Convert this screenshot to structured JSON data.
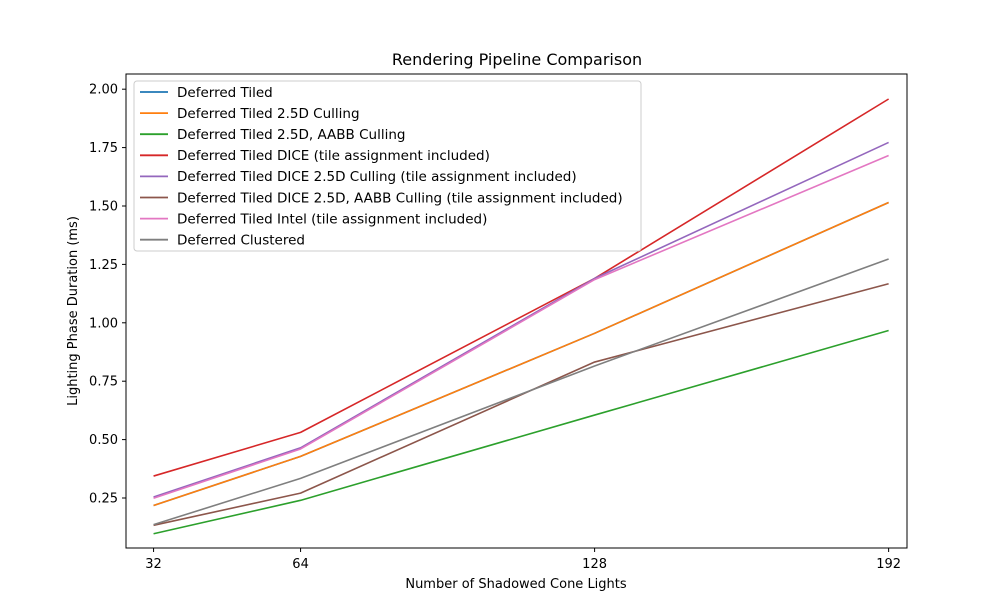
{
  "chart_data": {
    "type": "line",
    "title": "Rendering Pipeline Comparison",
    "xlabel": "Number of Shadowed Cone Lights",
    "ylabel": "Lighting Phase Duration (ms)",
    "x": [
      32,
      64,
      128,
      192
    ],
    "xticks": [
      "32",
      "64",
      "128",
      "192"
    ],
    "yticks": [
      0.25,
      0.5,
      0.75,
      1.0,
      1.25,
      1.5,
      1.75,
      2.0
    ],
    "ytick_labels": [
      "0.25",
      "0.50",
      "0.75",
      "1.00",
      "1.25",
      "1.50",
      "1.75",
      "2.00"
    ],
    "xlim": [
      26,
      196
    ],
    "ylim": [
      0.036,
      2.065
    ],
    "grid": false,
    "legend_position": "upper-left",
    "series": [
      {
        "name": "Deferred Tiled",
        "color": "#1f77b4",
        "values": [
          0.218,
          0.428,
          0.955,
          1.515
        ]
      },
      {
        "name": "Deferred Tiled 2.5D Culling",
        "color": "#ff7f0e",
        "values": [
          0.218,
          0.428,
          0.955,
          1.515
        ]
      },
      {
        "name": "Deferred Tiled 2.5D, AABB Culling",
        "color": "#2ca02c",
        "values": [
          0.097,
          0.24,
          0.605,
          0.967
        ]
      },
      {
        "name": "Deferred Tiled DICE (tile assignment included)",
        "color": "#d62728",
        "values": [
          0.344,
          0.531,
          1.19,
          1.958
        ]
      },
      {
        "name": "Deferred Tiled DICE 2.5D Culling (tile assignment included)",
        "color": "#9467bd",
        "values": [
          0.254,
          0.465,
          1.19,
          1.772
        ]
      },
      {
        "name": "Deferred Tiled DICE 2.5D, AABB Culling (tile assignment included)",
        "color": "#8c564b",
        "values": [
          0.133,
          0.271,
          0.832,
          1.167
        ]
      },
      {
        "name": "Deferred Tiled Intel (tile assignment included)",
        "color": "#e377c2",
        "values": [
          0.249,
          0.46,
          1.185,
          1.716
        ]
      },
      {
        "name": "Deferred Clustered",
        "color": "#7f7f7f",
        "values": [
          0.136,
          0.334,
          0.815,
          1.273
        ]
      }
    ]
  }
}
